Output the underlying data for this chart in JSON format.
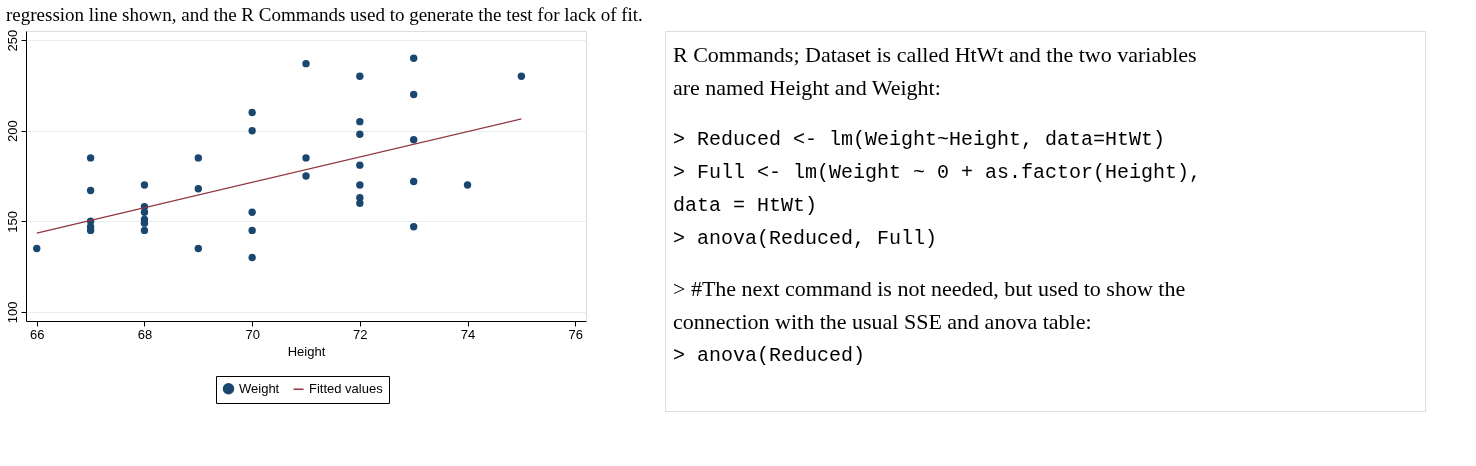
{
  "chart_data": [
    {
      "type": "scatter",
      "title": "regression line shown, and the R Commands used to generate the test for lack of fit.",
      "xlabel": "Height",
      "xlim": [
        65.8,
        76.2
      ],
      "xticks": [
        66,
        68,
        70,
        72,
        74,
        76
      ],
      "ylim": [
        95,
        255
      ],
      "yticks": [
        100,
        150,
        200,
        250
      ],
      "grid": "y",
      "legend": "bottom",
      "series": [
        {
          "name": "Weight",
          "color": "#1a476f",
          "marker": "circle",
          "x": [
            66,
            67,
            67,
            67,
            67,
            67,
            68,
            68,
            68,
            68,
            68,
            68,
            69,
            69,
            69,
            70,
            70,
            70,
            70,
            70,
            71,
            71,
            71,
            72,
            72,
            72,
            72,
            72,
            72,
            72,
            73,
            73,
            73,
            73,
            73,
            74,
            75
          ],
          "values": [
            135,
            185,
            167,
            150,
            147,
            145,
            170,
            158,
            155,
            151,
            149,
            145,
            185,
            168,
            135,
            210,
            200,
            155,
            145,
            130,
            237,
            185,
            175,
            230,
            205,
            198,
            181,
            170,
            163,
            160,
            240,
            220,
            195,
            172,
            147,
            170,
            230
          ]
        },
        {
          "name": "Fitted values",
          "type": "line",
          "color": "#90353b",
          "x": [
            66,
            75
          ],
          "values": [
            143.5,
            206.5
          ]
        }
      ]
    },
    {
      "type": "other",
      "annotations": [
        "R Commands; Dataset is called HtWt and the two variables",
        "are named Height and Weight:",
        "> Reduced <- lm(Weight~Height, data=HtWt)",
        "> Full <- lm(Weight ~ 0 + as.factor(Height),",
        "data = HtWt)",
        "> anova(Reduced, Full)",
        "> #The next command is not needed, but used to show the",
        "connection with the usual SSE and anova table:",
        "> anova(Reduced)"
      ]
    }
  ]
}
